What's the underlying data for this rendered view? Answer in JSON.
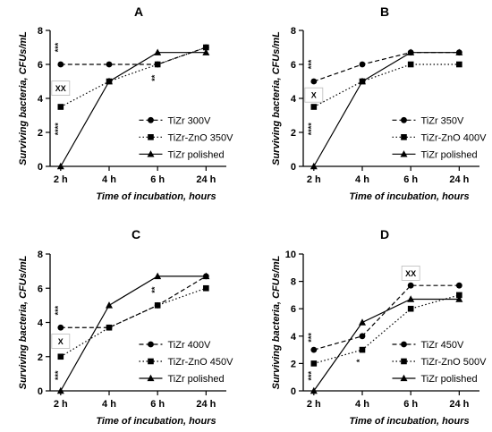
{
  "chart_data": [
    {
      "panel": "A",
      "type": "line",
      "categories": [
        "2 h",
        "4 h",
        "6 h",
        "24 h"
      ],
      "ylim": [
        0,
        8
      ],
      "yticks": [
        "0",
        "2",
        "4",
        "6",
        "8"
      ],
      "xlabel": "Time of incubation, hours",
      "ylabel": "Surviving bacteria, CFUs/mL",
      "legend_position": "right",
      "series": [
        {
          "name": "TiZr 300V",
          "values": [
            6,
            6,
            6,
            7
          ],
          "marker": "circle",
          "line": "dashed"
        },
        {
          "name": "TiZr-ZnO 350V",
          "values": [
            3.5,
            5,
            6,
            7
          ],
          "marker": "square",
          "line": "dotted"
        },
        {
          "name": "TiZr polished",
          "values": [
            0,
            5,
            6.7,
            6.7
          ],
          "marker": "triangle",
          "line": "solid"
        }
      ],
      "annotations": [
        {
          "text": "***",
          "category": "2 h",
          "y": 7
        },
        {
          "text": "XX",
          "category": "2 h",
          "y": 4.6,
          "boxed": true
        },
        {
          "text": "****",
          "category": "2 h",
          "y": 2.2
        },
        {
          "text": "**",
          "category": "6 h",
          "y": 5.2
        }
      ]
    },
    {
      "panel": "B",
      "type": "line",
      "categories": [
        "2 h",
        "4 h",
        "6 h",
        "24 h"
      ],
      "ylim": [
        0,
        8
      ],
      "yticks": [
        "0",
        "2",
        "4",
        "6",
        "8"
      ],
      "xlabel": "Time of incubation, hours",
      "ylabel": "Surviving bacteria, CFUs/mL",
      "legend_position": "right",
      "series": [
        {
          "name": "TiZr 350V",
          "values": [
            5,
            6,
            6.7,
            6.7
          ],
          "marker": "circle",
          "line": "dashed"
        },
        {
          "name": "TiZr-ZnO 400V",
          "values": [
            3.5,
            5,
            6,
            6
          ],
          "marker": "square",
          "line": "dotted"
        },
        {
          "name": "TiZr polished",
          "values": [
            0,
            5,
            6.7,
            6.7
          ],
          "marker": "triangle",
          "line": "solid"
        }
      ],
      "annotations": [
        {
          "text": "***",
          "category": "2 h",
          "y": 6
        },
        {
          "text": "X",
          "category": "2 h",
          "y": 4.2,
          "boxed": true
        },
        {
          "text": "****",
          "category": "2 h",
          "y": 2.2
        }
      ]
    },
    {
      "panel": "C",
      "type": "line",
      "categories": [
        "2 h",
        "4 h",
        "6 h",
        "24 h"
      ],
      "ylim": [
        0,
        8
      ],
      "yticks": [
        "0",
        "2",
        "4",
        "6",
        "8"
      ],
      "xlabel": "Time of incubation, hours",
      "ylabel": "Surviving bacteria, CFUs/mL",
      "legend_position": "right",
      "series": [
        {
          "name": "TiZr 400V",
          "values": [
            3.7,
            3.7,
            5,
            6.7
          ],
          "marker": "circle",
          "line": "dashed"
        },
        {
          "name": "TiZr-ZnO 450V",
          "values": [
            2,
            3.7,
            5,
            6
          ],
          "marker": "square",
          "line": "dotted"
        },
        {
          "name": "TiZr polished",
          "values": [
            0,
            5,
            6.7,
            6.7
          ],
          "marker": "triangle",
          "line": "solid"
        }
      ],
      "annotations": [
        {
          "text": "***",
          "category": "2 h",
          "y": 4.7
        },
        {
          "text": "X",
          "category": "2 h",
          "y": 2.9,
          "boxed": true
        },
        {
          "text": "***",
          "category": "2 h",
          "y": 0.9
        },
        {
          "text": "**",
          "category": "6 h",
          "y": 5.9
        }
      ]
    },
    {
      "panel": "D",
      "type": "line",
      "categories": [
        "2 h",
        "4 h",
        "6 h",
        "24 h"
      ],
      "ylim": [
        0,
        10
      ],
      "yticks": [
        "0",
        "2",
        "4",
        "6",
        "8",
        "10"
      ],
      "xlabel": "Time of incubation, hours",
      "ylabel": "Surviving bacteria, CFUs/mL",
      "legend_position": "right",
      "series": [
        {
          "name": "TiZr 450V",
          "values": [
            3,
            4,
            7.7,
            7.7
          ],
          "marker": "circle",
          "line": "dashed"
        },
        {
          "name": "TiZr-ZnO 500V",
          "values": [
            2,
            3,
            6,
            7
          ],
          "marker": "square",
          "line": "dotted"
        },
        {
          "name": "TiZr polished",
          "values": [
            0,
            5,
            6.7,
            6.7
          ],
          "marker": "triangle",
          "line": "solid"
        }
      ],
      "annotations": [
        {
          "text": "***",
          "category": "2 h",
          "y": 3.9
        },
        {
          "text": "***",
          "category": "2 h",
          "y": 1.1
        },
        {
          "text": "*",
          "category": "4 h",
          "y": 2.2
        },
        {
          "text": "XX",
          "category": "6 h",
          "y": 8.6,
          "boxed": true
        }
      ]
    }
  ]
}
